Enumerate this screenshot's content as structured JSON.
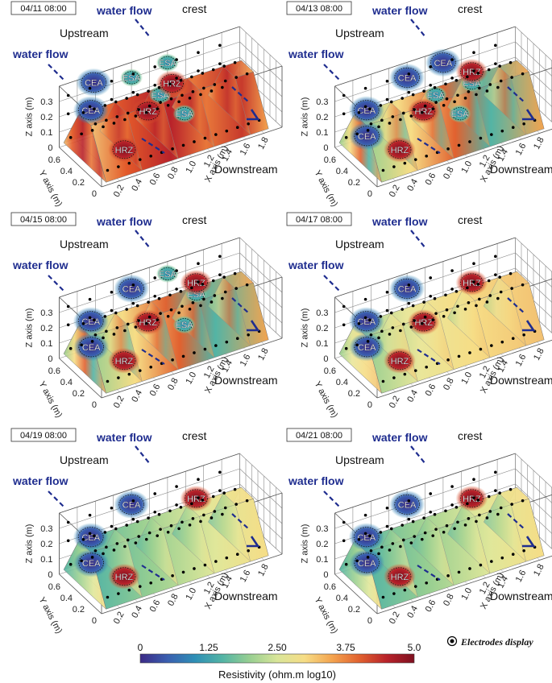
{
  "figure": {
    "axis_labels": {
      "z": "Z axis (m)",
      "y": "Y axis (m)",
      "x": "X axis (m)"
    },
    "z_ticks": [
      "0",
      "0.1",
      "0.2",
      "0.3"
    ],
    "y_ticks": [
      "0",
      "0.2",
      "0.4",
      "0.6"
    ],
    "x_ticks": [
      "0.2",
      "0.4",
      "0.6",
      "0.8",
      "1.0",
      "1.2",
      "1.4",
      "1.6",
      "1.8"
    ],
    "upstream_label": "Upstream",
    "downstream_label": "Downstream",
    "crest_label": "crest",
    "water_flow_label": "water flow"
  },
  "panels": [
    {
      "timestamp": "04/11 08:00",
      "background": "red",
      "zones": [
        {
          "text": "CEA",
          "kind": "cea",
          "anchor": "mid-left"
        },
        {
          "text": "CEA",
          "kind": "cea",
          "anchor": "back-left"
        },
        {
          "text": "ESA",
          "kind": "esa",
          "anchor": "back-mid"
        },
        {
          "text": "ESA",
          "kind": "esa",
          "anchor": "back-right"
        },
        {
          "text": "ESA",
          "kind": "esa",
          "anchor": "mid"
        },
        {
          "text": "ESA",
          "kind": "esa",
          "anchor": "front-mid"
        },
        {
          "text": "HRZ",
          "kind": "hrz",
          "anchor": "back-mid-right"
        },
        {
          "text": "HRZ",
          "kind": "hrz",
          "anchor": "mid-center"
        },
        {
          "text": "HRZ",
          "kind": "hrz",
          "anchor": "front-left"
        }
      ]
    },
    {
      "timestamp": "04/13 08:00",
      "background": "mixed",
      "zones": [
        {
          "text": "CEA",
          "kind": "cea",
          "anchor": "back-right"
        },
        {
          "text": "CEA",
          "kind": "cea",
          "anchor": "back-mid"
        },
        {
          "text": "CEA",
          "kind": "cea",
          "anchor": "mid-left"
        },
        {
          "text": "CEA",
          "kind": "cea",
          "anchor": "front-left2"
        },
        {
          "text": "ESA",
          "kind": "esa",
          "anchor": "mid"
        },
        {
          "text": "ESA",
          "kind": "esa",
          "anchor": "mid-right"
        },
        {
          "text": "ESA",
          "kind": "esa",
          "anchor": "front-mid"
        },
        {
          "text": "HRZ",
          "kind": "hrz",
          "anchor": "back-right2"
        },
        {
          "text": "HRZ",
          "kind": "hrz",
          "anchor": "mid-center"
        },
        {
          "text": "HRZ",
          "kind": "hrz",
          "anchor": "front-left"
        }
      ]
    },
    {
      "timestamp": "04/15 08:00",
      "background": "mixed",
      "zones": [
        {
          "text": "CEA",
          "kind": "cea",
          "anchor": "front-left2"
        },
        {
          "text": "CEA",
          "kind": "cea",
          "anchor": "mid-left"
        },
        {
          "text": "CEA",
          "kind": "cea",
          "anchor": "back-mid"
        },
        {
          "text": "ESA",
          "kind": "esa",
          "anchor": "back-right"
        },
        {
          "text": "ESA",
          "kind": "esa",
          "anchor": "mid-right"
        },
        {
          "text": "ESA",
          "kind": "esa",
          "anchor": "front-mid"
        },
        {
          "text": "HRZ",
          "kind": "hrz",
          "anchor": "back-right2"
        },
        {
          "text": "HRZ",
          "kind": "hrz",
          "anchor": "mid-center"
        },
        {
          "text": "HRZ",
          "kind": "hrz",
          "anchor": "front-left"
        }
      ]
    },
    {
      "timestamp": "04/17 08:00",
      "background": "yellow",
      "zones": [
        {
          "text": "CEA",
          "kind": "cea",
          "anchor": "front-left2"
        },
        {
          "text": "CEA",
          "kind": "cea",
          "anchor": "mid-left"
        },
        {
          "text": "CEA",
          "kind": "cea",
          "anchor": "back-mid"
        },
        {
          "text": "HRZ",
          "kind": "hrz",
          "anchor": "back-right2"
        },
        {
          "text": "HRZ",
          "kind": "hrz",
          "anchor": "mid-center"
        },
        {
          "text": "HRZ",
          "kind": "hrz",
          "anchor": "front-left"
        }
      ]
    },
    {
      "timestamp": "04/19 08:00",
      "background": "yellowgreen",
      "zones": [
        {
          "text": "CEA",
          "kind": "cea",
          "anchor": "front-left2"
        },
        {
          "text": "CEA",
          "kind": "cea",
          "anchor": "mid-left"
        },
        {
          "text": "CEA",
          "kind": "cea",
          "anchor": "back-mid"
        },
        {
          "text": "HRZ",
          "kind": "hrz",
          "anchor": "back-right2"
        },
        {
          "text": "HRZ",
          "kind": "hrz",
          "anchor": "front-left"
        }
      ]
    },
    {
      "timestamp": "04/21 08:00",
      "background": "yellowgreen",
      "zones": [
        {
          "text": "CEA",
          "kind": "cea",
          "anchor": "front-left2"
        },
        {
          "text": "CEA",
          "kind": "cea",
          "anchor": "mid-left"
        },
        {
          "text": "CEA",
          "kind": "cea",
          "anchor": "back-mid"
        },
        {
          "text": "HRZ",
          "kind": "hrz",
          "anchor": "back-right2"
        },
        {
          "text": "HRZ",
          "kind": "hrz",
          "anchor": "front-left"
        }
      ]
    }
  ],
  "colorbar": {
    "ticks": [
      "0",
      "1.25",
      "2.50",
      "3.75",
      "5.0"
    ],
    "label": "Resistivity (ohm.m log10)",
    "colors": [
      "#3b2a86",
      "#3a5fb0",
      "#2e8fb6",
      "#53b4a5",
      "#98cf91",
      "#d9e599",
      "#f6dd86",
      "#f4a44f",
      "#e1612f",
      "#b8222a",
      "#7e1020"
    ]
  },
  "legend": {
    "electrodes_label": "Electrodes display"
  },
  "colors": {
    "water_flow_text": "#1f2d8f",
    "arrow": "#1f2d8f",
    "zone_text": "#ffffff"
  }
}
